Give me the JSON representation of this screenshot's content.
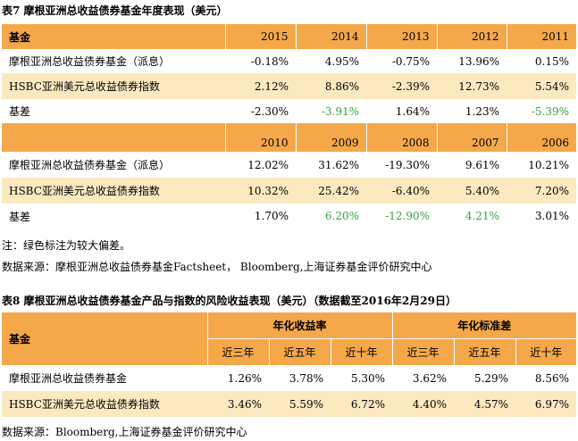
{
  "table7": {
    "title": "表7 摩根亚洲总收益债券基金年度表现（美元）",
    "header1": {
      "label": "基金",
      "years": [
        "2015",
        "2014",
        "2013",
        "2012",
        "2011"
      ]
    },
    "rows1": [
      {
        "label": "摩根亚洲总收益债券基金（派息）",
        "values": [
          "-0.18%",
          "4.95%",
          "-0.75%",
          "13.96%",
          "0.15%"
        ],
        "green": [
          false,
          false,
          false,
          false,
          false
        ]
      },
      {
        "label": "HSBC亚洲美元总收益债券指数",
        "values": [
          "2.12%",
          "8.86%",
          "-2.39%",
          "12.73%",
          "5.54%"
        ],
        "green": [
          false,
          false,
          false,
          false,
          false
        ]
      },
      {
        "label": "基差",
        "values": [
          "-2.30%",
          "-3.91%",
          "1.64%",
          "1.23%",
          "-5.39%"
        ],
        "green": [
          false,
          true,
          false,
          false,
          true
        ]
      }
    ],
    "header2": {
      "years": [
        "2010",
        "2009",
        "2008",
        "2007",
        "2006"
      ]
    },
    "rows2": [
      {
        "label": "摩根亚洲总收益债券基金（派息）",
        "values": [
          "12.02%",
          "31.62%",
          "-19.30%",
          "9.61%",
          "10.21%"
        ],
        "green": [
          false,
          false,
          false,
          false,
          false
        ]
      },
      {
        "label": "HSBC亚洲美元总收益债券指数",
        "values": [
          "10.32%",
          "25.42%",
          "-6.40%",
          "5.40%",
          "7.20%"
        ],
        "green": [
          false,
          false,
          false,
          false,
          false
        ]
      },
      {
        "label": "基差",
        "values": [
          "1.70%",
          "6.20%",
          "-12.90%",
          "4.21%",
          "3.01%"
        ],
        "green": [
          false,
          true,
          true,
          true,
          false
        ]
      }
    ],
    "note1": "注：绿色标注为较大偏差。",
    "note2": "数据来源：摩根亚洲总收益债券基金Factsheet， Bloomberg,上海证券基金评价研究中心"
  },
  "table8": {
    "title": "表8 摩根亚洲总收益债券基金产品与指数的风险收益表现（美元）（数据截至2016年2月29日）",
    "label": "基金",
    "group1": "年化收益率",
    "group2": "年化标准差",
    "periods": [
      "近三年",
      "近五年",
      "近十年",
      "近三年",
      "近五年",
      "近十年"
    ],
    "rows": [
      {
        "label": "摩根亚洲总收益债券基金",
        "values": [
          "1.26%",
          "3.78%",
          "5.30%",
          "3.62%",
          "5.29%",
          "8.56%"
        ]
      },
      {
        "label": "HSBC亚洲美元总收益债券指数",
        "values": [
          "3.46%",
          "5.59%",
          "6.72%",
          "4.40%",
          "4.57%",
          "6.97%"
        ]
      }
    ],
    "source": "数据来源：Bloomberg,上海证券基金评价研究中心"
  },
  "colors": {
    "header_orange": "#f5a84a",
    "row_light": "#fde9c0",
    "green_text": "#35a33b"
  }
}
